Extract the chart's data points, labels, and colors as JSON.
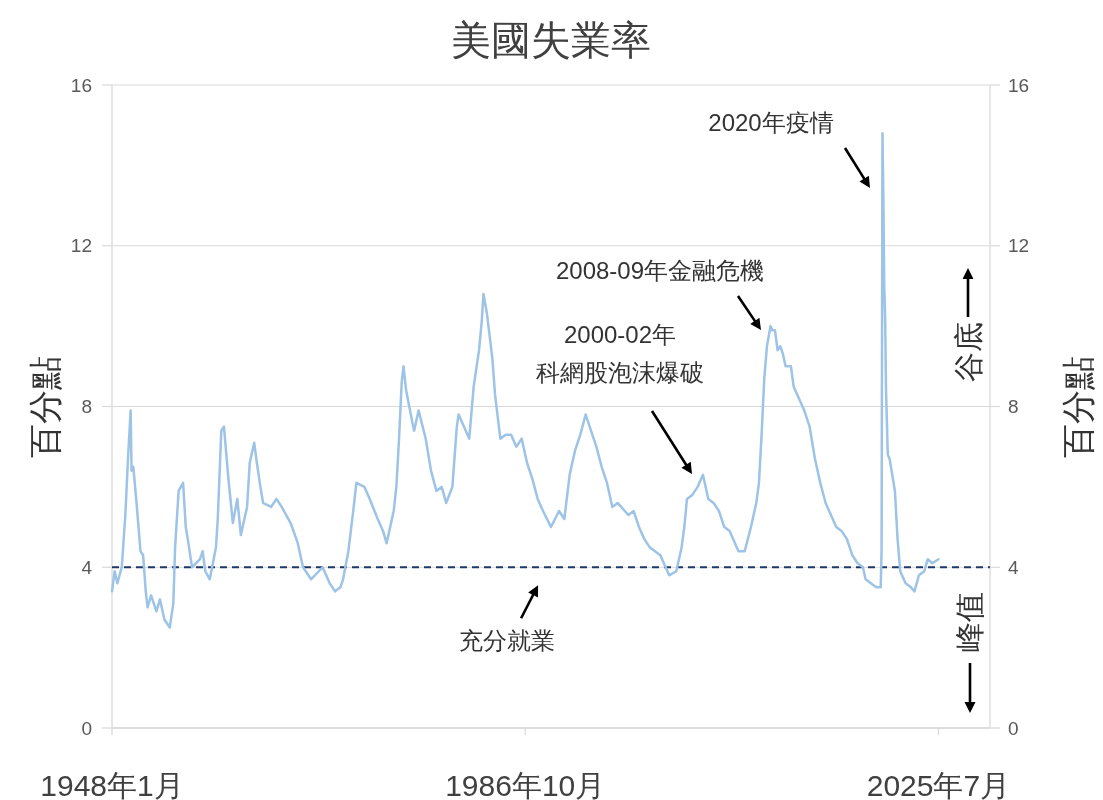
{
  "chart_data": {
    "type": "line",
    "title": "美國失業率",
    "ylabel": "百分點",
    "y2label": "百分點",
    "x": [
      "1948-01",
      "1948-04",
      "1948-07",
      "1948-12",
      "1949-04",
      "1949-07",
      "1949-10",
      "1949-11",
      "1950-01",
      "1950-05",
      "1950-09",
      "1950-12",
      "1951-03",
      "1951-05",
      "1951-09",
      "1952-03",
      "1952-07",
      "1952-12",
      "1953-06",
      "1953-10",
      "1953-12",
      "1954-04",
      "1954-09",
      "1954-12",
      "1955-03",
      "1955-07",
      "1956-04",
      "1956-07",
      "1956-10",
      "1957-03",
      "1957-10",
      "1957-12",
      "1958-04",
      "1958-07",
      "1958-12",
      "1959-05",
      "1959-10",
      "1960-02",
      "1960-09",
      "1960-12",
      "1961-05",
      "1961-08",
      "1961-12",
      "1962-03",
      "1962-12",
      "1963-06",
      "1963-12",
      "1964-10",
      "1965-06",
      "1965-12",
      "1966-09",
      "1967-10",
      "1968-06",
      "1968-12",
      "1969-06",
      "1969-09",
      "1970-03",
      "1970-09",
      "1970-12",
      "1971-09",
      "1972-03",
      "1972-12",
      "1973-06",
      "1973-10",
      "1974-06",
      "1974-09",
      "1974-12",
      "1975-03",
      "1975-05",
      "1975-08",
      "1976-03",
      "1976-05",
      "1976-10",
      "1977-06",
      "1977-12",
      "1978-06",
      "1978-12",
      "1979-05",
      "1979-12",
      "1980-05",
      "1980-07",
      "1981-01",
      "1981-07",
      "1981-12",
      "1982-06",
      "1982-09",
      "1982-11",
      "1983-03",
      "1983-09",
      "1983-12",
      "1984-06",
      "1984-12",
      "1985-06",
      "1985-12",
      "1986-06",
      "1986-12",
      "1987-06",
      "1987-12",
      "1988-06",
      "1989-03",
      "1989-12",
      "1990-06",
      "1990-12",
      "1991-06",
      "1991-12",
      "1992-06",
      "1992-12",
      "1993-06",
      "1993-12",
      "1994-06",
      "1994-12",
      "1995-06",
      "1996-06",
      "1996-12",
      "1997-06",
      "1997-12",
      "1998-06",
      "1998-12",
      "1999-06",
      "1999-12",
      "2000-04",
      "2000-12",
      "2001-06",
      "2001-09",
      "2001-12",
      "2002-06",
      "2002-12",
      "2003-06",
      "2003-12",
      "2004-06",
      "2004-12",
      "2005-06",
      "2005-12",
      "2006-06",
      "2006-10",
      "2007-05",
      "2007-12",
      "2008-06",
      "2008-09",
      "2008-12",
      "2009-03",
      "2009-06",
      "2009-10",
      "2009-12",
      "2010-03",
      "2010-06",
      "2010-09",
      "2010-12",
      "2011-03",
      "2011-09",
      "2011-12",
      "2012-06",
      "2012-12",
      "2013-06",
      "2013-12",
      "2014-06",
      "2014-12",
      "2015-06",
      "2015-12",
      "2016-06",
      "2016-12",
      "2017-06",
      "2017-12",
      "2018-06",
      "2018-09",
      "2019-09",
      "2020-02",
      "2020-03",
      "2020-04",
      "2020-05",
      "2020-06",
      "2020-07",
      "2020-08",
      "2020-10",
      "2020-12",
      "2021-06",
      "2021-09",
      "2021-12",
      "2022-06",
      "2022-12",
      "2023-04",
      "2023-09",
      "2024-03",
      "2024-07",
      "2024-12",
      "2025-07"
    ],
    "series": [
      {
        "color": "#9dc3e6",
        "values": [
          3.4,
          3.9,
          3.6,
          4.0,
          5.3,
          6.7,
          7.9,
          6.4,
          6.5,
          5.5,
          4.4,
          4.3,
          3.4,
          3.0,
          3.3,
          2.9,
          3.2,
          2.7,
          2.5,
          3.1,
          4.5,
          5.9,
          6.1,
          5.0,
          4.6,
          4.0,
          4.2,
          4.4,
          3.9,
          3.7,
          4.5,
          5.2,
          7.4,
          7.5,
          6.2,
          5.1,
          5.7,
          4.8,
          5.5,
          6.6,
          7.1,
          6.6,
          6.0,
          5.6,
          5.5,
          5.7,
          5.5,
          5.1,
          4.6,
          4.0,
          3.7,
          4.0,
          3.6,
          3.4,
          3.5,
          3.7,
          4.4,
          5.5,
          6.1,
          6.0,
          5.7,
          5.2,
          4.9,
          4.6,
          5.4,
          6.0,
          7.2,
          8.6,
          9.0,
          8.4,
          7.6,
          7.4,
          7.9,
          7.2,
          6.4,
          5.9,
          6.0,
          5.6,
          6.0,
          7.5,
          7.8,
          7.5,
          7.2,
          8.5,
          9.4,
          10.1,
          10.8,
          10.3,
          9.2,
          8.3,
          7.2,
          7.3,
          7.3,
          7.0,
          7.2,
          6.6,
          6.2,
          5.7,
          5.4,
          5.0,
          5.4,
          5.2,
          6.3,
          6.9,
          7.3,
          7.8,
          7.4,
          7.0,
          6.5,
          6.1,
          5.5,
          5.6,
          5.3,
          5.4,
          5.0,
          4.7,
          4.5,
          4.4,
          4.3,
          4.0,
          3.8,
          3.9,
          4.5,
          5.0,
          5.7,
          5.8,
          6.0,
          6.3,
          5.7,
          5.6,
          5.4,
          5.0,
          4.9,
          4.6,
          4.4,
          4.4,
          5.0,
          5.6,
          6.1,
          7.3,
          8.7,
          9.5,
          10.0,
          9.9,
          9.9,
          9.4,
          9.5,
          9.3,
          9.0,
          9.0,
          8.5,
          8.2,
          7.9,
          7.5,
          6.7,
          6.1,
          5.6,
          5.3,
          5.0,
          4.9,
          4.7,
          4.3,
          4.1,
          4.0,
          3.7,
          3.5,
          3.5,
          4.4,
          14.8,
          13.2,
          11.0,
          10.2,
          8.4,
          6.8,
          6.7,
          5.9,
          4.7,
          3.9,
          3.6,
          3.5,
          3.4,
          3.8,
          3.9,
          4.2,
          4.1,
          4.2
        ]
      }
    ],
    "xlim": [
      "1948-01",
      "2030-05"
    ],
    "xticks": [
      {
        "value": "1948-01",
        "label": "1948年1月"
      },
      {
        "value": "1986-10",
        "label": "1986年10月"
      },
      {
        "value": "2025-07",
        "label": "2025年7月"
      }
    ],
    "ylim": [
      0,
      16
    ],
    "yticks": [
      0,
      4,
      8,
      12,
      16
    ],
    "y2lim": [
      0,
      16
    ],
    "y2ticks": [
      0,
      4,
      8,
      12,
      16
    ],
    "grid": "y",
    "line_style": "solid",
    "ref_lines": [
      {
        "axis": "y",
        "value": 4,
        "label": "充分就業",
        "color": "#1f3864",
        "line_style": "dashed"
      }
    ],
    "annotations": [
      "2020年疫情",
      "2008-09年金融危機",
      "2000-02年科網股泡沫爆破",
      "谷底",
      "峰值"
    ]
  }
}
